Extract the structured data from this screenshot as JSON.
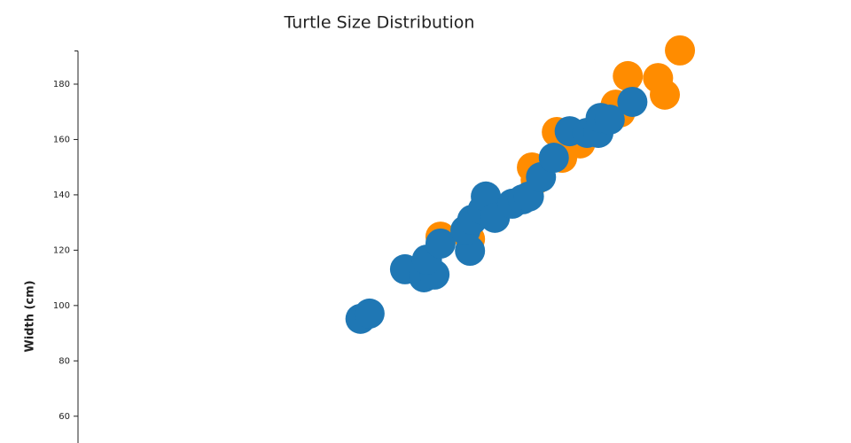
{
  "chart_data": {
    "type": "scatter",
    "title": "Turtle Size Distribution",
    "y_label": "Width (cm)",
    "xlim": [
      0,
      100
    ],
    "ylim": [
      50,
      192
    ],
    "yticks": [
      60,
      80,
      100,
      120,
      140,
      160,
      180
    ],
    "series": [
      {
        "color": "#ff8c00",
        "x": [
          79.7,
          76.8,
          72.8,
          77.7,
          71.8,
          71.2,
          66.5,
          64.1,
          63.4,
          60.1,
          60.6,
          48.0,
          51.9
        ],
        "values": [
          192.2,
          182.2,
          182.9,
          176.2,
          169.8,
          172.6,
          158.6,
          153.4,
          162.7,
          149.9,
          145.4,
          124.9,
          124.0
        ]
      },
      {
        "color": "#1f77b4",
        "x": [
          37.4,
          38.6,
          43.3,
          45.8,
          47.2,
          46.2,
          48.0,
          51.9,
          51.3,
          52.2,
          53.6,
          54.0,
          55.2,
          57.5,
          58.9,
          59.7,
          61.3,
          63.0,
          65.1,
          67.4,
          68.9,
          69.2,
          70.4,
          73.4
        ],
        "values": [
          95.2,
          97.1,
          113.1,
          110.2,
          111.2,
          116.6,
          122.4,
          119.8,
          127.2,
          131.0,
          134.6,
          139.4,
          131.7,
          136.8,
          138.4,
          139.4,
          146.4,
          153.4,
          163.0,
          162.4,
          162.4,
          167.8,
          167.2,
          173.6
        ]
      }
    ]
  }
}
